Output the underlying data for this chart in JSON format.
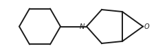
{
  "background": "#ffffff",
  "line_color": "#1a1a1a",
  "line_width": 1.4,
  "N_label": "N",
  "O_label": "O",
  "font_size_labels": 7.0,
  "figsize": [
    2.28,
    0.77
  ],
  "dpi": 100
}
